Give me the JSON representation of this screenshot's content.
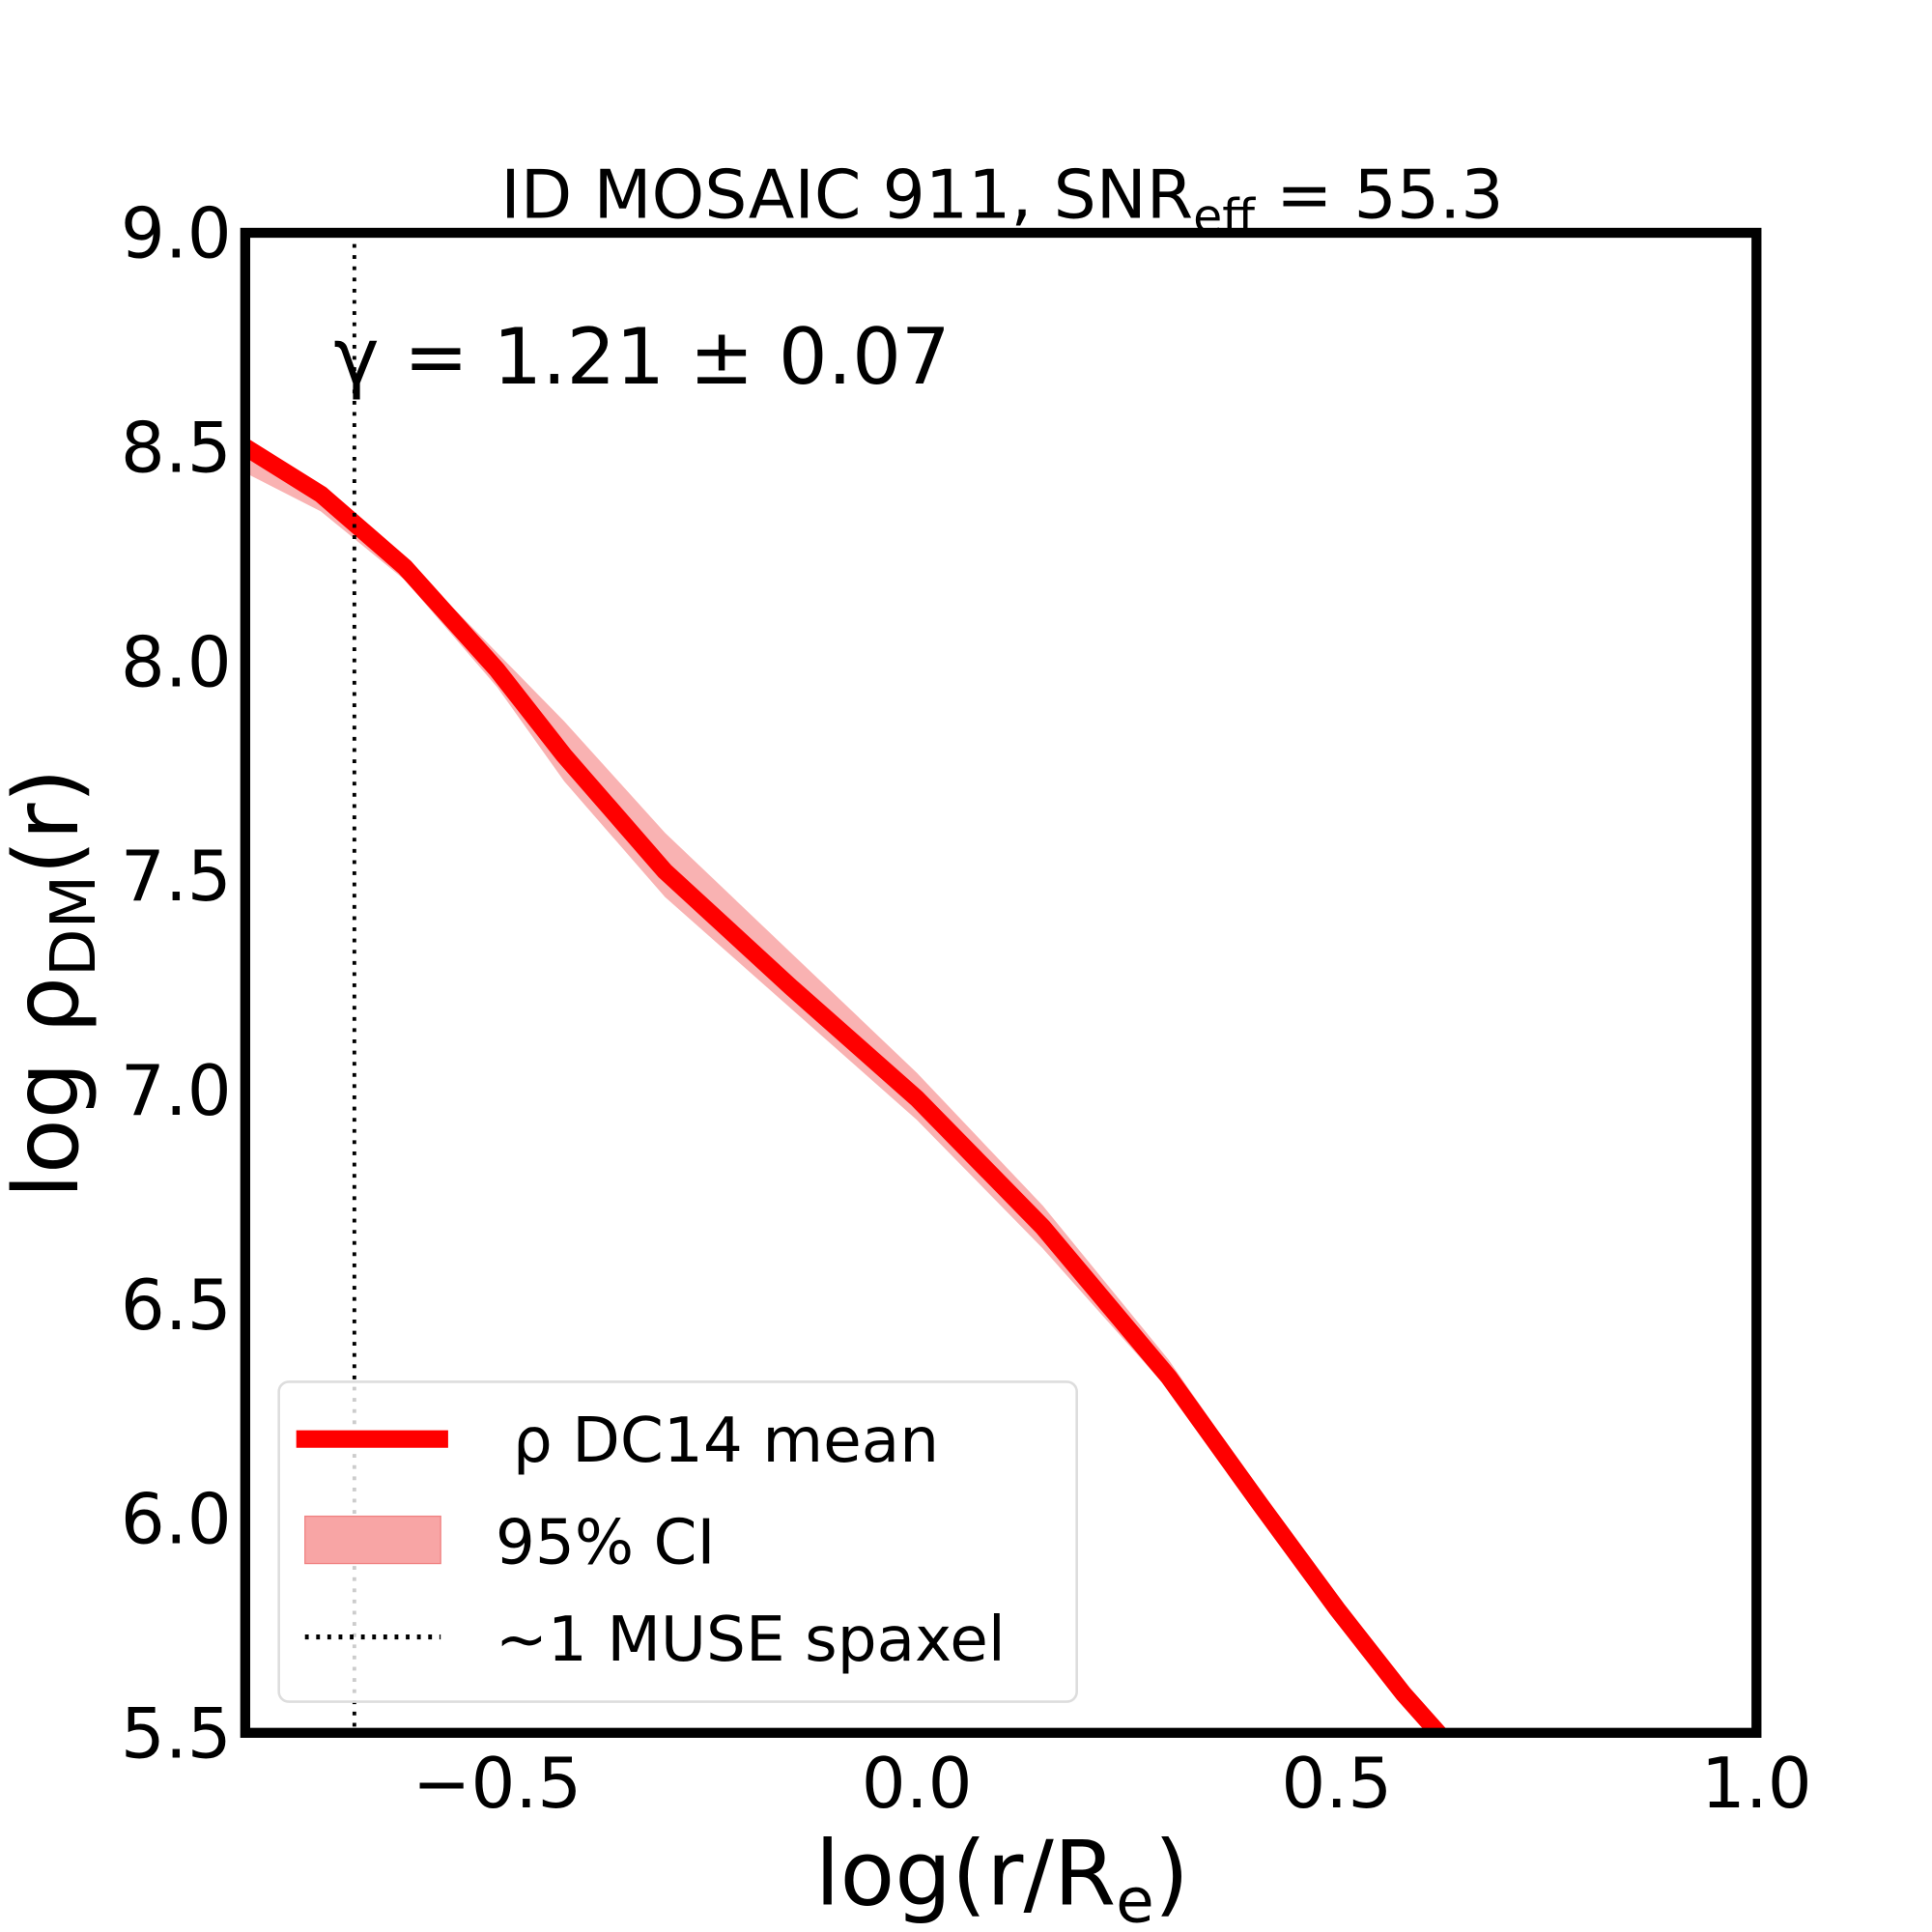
{
  "chart_data": {
    "type": "line",
    "title": "ID MOSAIC 911, SNR",
    "title_sub": "eff",
    "title_tail": " = 55.3",
    "annotation": "γ = 1.21 ± 0.07",
    "xlabel": "log(r/R",
    "xlabel_sub": "e",
    "xlabel_tail": ")",
    "ylabel": "log ρ",
    "ylabel_sub": "DM",
    "ylabel_tail": "(r)",
    "xlim": [
      -0.8,
      1.0
    ],
    "ylim": [
      5.5,
      9.0
    ],
    "xticks": [
      "−0.5",
      "0.0",
      "0.5",
      "1.0"
    ],
    "xtick_values": [
      -0.5,
      0.0,
      0.5,
      1.0
    ],
    "yticks": [
      "5.5",
      "6.0",
      "6.5",
      "7.0",
      "7.5",
      "8.0",
      "8.5",
      "9.0"
    ],
    "ytick_values": [
      5.5,
      6.0,
      6.5,
      7.0,
      7.5,
      8.0,
      8.5,
      9.0
    ],
    "grid": false,
    "legend_position": "lower-left",
    "series": [
      {
        "name": "ρ DC14 mean",
        "color": "#ff0000",
        "x": [
          -0.8,
          -0.71,
          -0.61,
          -0.5,
          -0.42,
          -0.3,
          -0.15,
          0.0,
          0.15,
          0.3,
          0.41,
          0.5,
          0.58,
          0.63
        ],
        "y": [
          8.5,
          8.39,
          8.22,
          7.98,
          7.78,
          7.51,
          7.24,
          6.98,
          6.68,
          6.33,
          6.03,
          5.79,
          5.59,
          5.48
        ]
      }
    ],
    "band": {
      "name": "95% CI",
      "color": "#f8a5a5",
      "x": [
        -0.8,
        -0.71,
        -0.61,
        -0.5,
        -0.42,
        -0.3,
        -0.15,
        0.0,
        0.15,
        0.3,
        0.41,
        0.5,
        0.58,
        0.63
      ],
      "lower": [
        8.44,
        8.35,
        8.19,
        7.94,
        7.72,
        7.45,
        7.19,
        6.93,
        6.63,
        6.3,
        6.01,
        5.78,
        5.58,
        5.47
      ],
      "upper": [
        8.5,
        8.4,
        8.24,
        8.02,
        7.86,
        7.6,
        7.32,
        7.04,
        6.73,
        6.37,
        6.06,
        5.81,
        5.6,
        5.49
      ]
    },
    "vline": {
      "name": "~1 MUSE spaxel",
      "x": -0.67
    }
  }
}
